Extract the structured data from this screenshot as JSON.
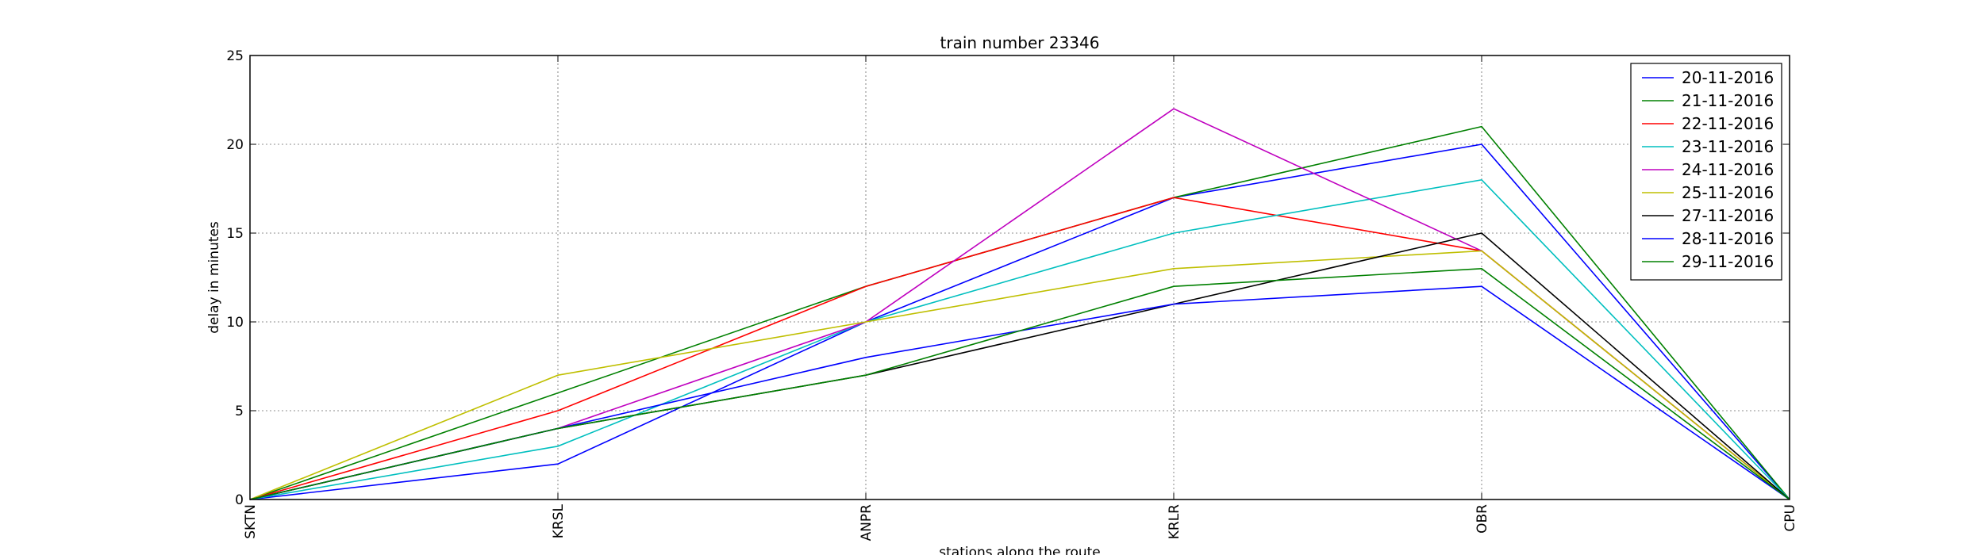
{
  "chart_data": {
    "type": "line",
    "title": "train number 23346",
    "xlabel": "stations along the route",
    "ylabel": "delay in minutes",
    "categories": [
      "SKTN",
      "KRSL",
      "ANPR",
      "KRLR",
      "OBR",
      "CPU"
    ],
    "ylim": [
      0,
      25
    ],
    "yticks": [
      0,
      5,
      10,
      15,
      20,
      25
    ],
    "grid": true,
    "legend_position": "top-right",
    "series": [
      {
        "name": "20-11-2016",
        "color": "#0000ff",
        "values": [
          0,
          2,
          10,
          17,
          20,
          0
        ]
      },
      {
        "name": "21-11-2016",
        "color": "#008000",
        "values": [
          0,
          6,
          12,
          17,
          21,
          0
        ]
      },
      {
        "name": "22-11-2016",
        "color": "#ff0000",
        "values": [
          0,
          5,
          12,
          17,
          14,
          0
        ]
      },
      {
        "name": "23-11-2016",
        "color": "#00bfbf",
        "values": [
          0,
          3,
          10,
          15,
          18,
          0
        ]
      },
      {
        "name": "24-11-2016",
        "color": "#bf00bf",
        "values": [
          0,
          4,
          10,
          22,
          14,
          0
        ]
      },
      {
        "name": "25-11-2016",
        "color": "#bfbf00",
        "values": [
          0,
          7,
          10,
          13,
          14,
          0
        ]
      },
      {
        "name": "27-11-2016",
        "color": "#000000",
        "values": [
          0,
          4,
          7,
          11,
          15,
          0
        ]
      },
      {
        "name": "28-11-2016",
        "color": "#0000ff",
        "values": [
          0,
          4,
          8,
          11,
          12,
          0
        ]
      },
      {
        "name": "29-11-2016",
        "color": "#008000",
        "values": [
          0,
          4,
          7,
          12,
          13,
          0
        ]
      }
    ]
  }
}
